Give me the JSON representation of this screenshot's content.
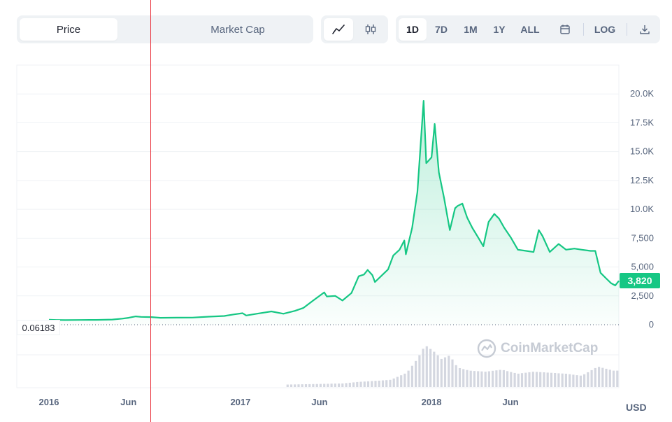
{
  "toolbar": {
    "tabs": [
      {
        "label": "Price",
        "active": true
      },
      {
        "label": "Market Cap",
        "active": false
      }
    ],
    "chart_types": [
      {
        "icon": "line-chart-icon",
        "active": true
      },
      {
        "icon": "candlestick-icon",
        "active": false
      }
    ],
    "ranges": [
      {
        "label": "1D",
        "active": true
      },
      {
        "label": "7D",
        "active": false
      },
      {
        "label": "1M",
        "active": false
      },
      {
        "label": "1Y",
        "active": false
      },
      {
        "label": "ALL",
        "active": false
      }
    ],
    "calendar_icon": "calendar-icon",
    "log_label": "LOG",
    "download_icon": "download-icon"
  },
  "min_label": "0.06183",
  "current_price_label": "3,820",
  "currency_label": "USD",
  "watermark": "CoinMarketCap",
  "colors": {
    "line": "#16c784",
    "volume": "#d4d7e0",
    "cursor": "#ea3943",
    "grid": "#eff2f5"
  },
  "chart_data": {
    "type": "area",
    "title": "",
    "xlabel": "",
    "ylabel": "",
    "currency": "USD",
    "ylim": [
      0,
      22500
    ],
    "y_ticks": [
      "0",
      "2,500",
      "5,000",
      "7,500",
      "10.0K",
      "12.5K",
      "15.0K",
      "17.5K",
      "20.0K"
    ],
    "y_tick_values": [
      0,
      2500,
      5000,
      7500,
      10000,
      12500,
      15000,
      17500,
      20000
    ],
    "x_ticks": [
      {
        "label": "2016",
        "date": "2016-01-01"
      },
      {
        "label": "Jun",
        "date": "2016-06-01"
      },
      {
        "label": "2017",
        "date": "2017-01-01"
      },
      {
        "label": "Jun",
        "date": "2017-06-01"
      },
      {
        "label": "2018",
        "date": "2018-01-01"
      },
      {
        "label": "Jun",
        "date": "2018-06-01"
      }
    ],
    "grid": true,
    "legend": "none",
    "series": [
      {
        "points": [
          [
            "2016-01-01",
            430
          ],
          [
            "2016-01-15",
            410
          ],
          [
            "2016-02-01",
            400
          ],
          [
            "2016-03-01",
            415
          ],
          [
            "2016-04-01",
            420
          ],
          [
            "2016-05-01",
            450
          ],
          [
            "2016-05-20",
            530
          ],
          [
            "2016-06-01",
            600
          ],
          [
            "2016-06-15",
            720
          ],
          [
            "2016-06-25",
            680
          ],
          [
            "2016-07-15",
            660
          ],
          [
            "2016-08-01",
            600
          ],
          [
            "2016-09-01",
            610
          ],
          [
            "2016-10-01",
            620
          ],
          [
            "2016-11-01",
            700
          ],
          [
            "2016-12-01",
            760
          ],
          [
            "2016-12-20",
            900
          ],
          [
            "2017-01-05",
            1000
          ],
          [
            "2017-01-12",
            800
          ],
          [
            "2017-02-01",
            950
          ],
          [
            "2017-03-01",
            1150
          ],
          [
            "2017-03-24",
            950
          ],
          [
            "2017-04-15",
            1200
          ],
          [
            "2017-05-01",
            1450
          ],
          [
            "2017-05-20",
            2100
          ],
          [
            "2017-06-10",
            2800
          ],
          [
            "2017-06-15",
            2450
          ],
          [
            "2017-07-01",
            2500
          ],
          [
            "2017-07-15",
            2100
          ],
          [
            "2017-08-01",
            2750
          ],
          [
            "2017-08-15",
            4200
          ],
          [
            "2017-08-25",
            4350
          ],
          [
            "2017-09-01",
            4750
          ],
          [
            "2017-09-10",
            4300
          ],
          [
            "2017-09-15",
            3700
          ],
          [
            "2017-10-01",
            4400
          ],
          [
            "2017-10-10",
            4800
          ],
          [
            "2017-10-20",
            6000
          ],
          [
            "2017-11-01",
            6500
          ],
          [
            "2017-11-10",
            7300
          ],
          [
            "2017-11-13",
            6100
          ],
          [
            "2017-11-25",
            8400
          ],
          [
            "2017-12-05",
            11500
          ],
          [
            "2017-12-17",
            19400
          ],
          [
            "2017-12-22",
            14000
          ],
          [
            "2018-01-01",
            14500
          ],
          [
            "2018-01-07",
            17400
          ],
          [
            "2018-01-15",
            13200
          ],
          [
            "2018-01-25",
            11000
          ],
          [
            "2018-02-01",
            9200
          ],
          [
            "2018-02-05",
            8200
          ],
          [
            "2018-02-15",
            10100
          ],
          [
            "2018-02-20",
            10300
          ],
          [
            "2018-03-01",
            10500
          ],
          [
            "2018-03-10",
            9300
          ],
          [
            "2018-03-20",
            8400
          ],
          [
            "2018-04-01",
            7500
          ],
          [
            "2018-04-10",
            6800
          ],
          [
            "2018-04-20",
            8900
          ],
          [
            "2018-05-01",
            9600
          ],
          [
            "2018-05-10",
            9200
          ],
          [
            "2018-05-20",
            8400
          ],
          [
            "2018-06-01",
            7600
          ],
          [
            "2018-06-15",
            6500
          ],
          [
            "2018-07-01",
            6400
          ],
          [
            "2018-07-15",
            6300
          ],
          [
            "2018-07-25",
            8200
          ],
          [
            "2018-08-01",
            7700
          ],
          [
            "2018-08-15",
            6300
          ],
          [
            "2018-09-01",
            7000
          ],
          [
            "2018-09-15",
            6500
          ],
          [
            "2018-10-01",
            6600
          ],
          [
            "2018-10-15",
            6500
          ],
          [
            "2018-11-01",
            6400
          ],
          [
            "2018-11-10",
            6400
          ],
          [
            "2018-11-20",
            4500
          ],
          [
            "2018-12-01",
            4000
          ],
          [
            "2018-12-10",
            3600
          ],
          [
            "2018-12-18",
            3400
          ],
          [
            "2018-12-25",
            3800
          ]
        ]
      }
    ],
    "volume": {
      "points": [
        [
          "2016-01-01",
          0.02
        ],
        [
          "2016-06-01",
          0.03
        ],
        [
          "2017-01-01",
          0.03
        ],
        [
          "2017-06-01",
          0.06
        ],
        [
          "2017-07-15",
          0.07
        ],
        [
          "2017-08-15",
          0.1
        ],
        [
          "2017-09-15",
          0.12
        ],
        [
          "2017-10-15",
          0.14
        ],
        [
          "2017-11-15",
          0.28
        ],
        [
          "2017-12-05",
          0.55
        ],
        [
          "2017-12-20",
          0.82
        ],
        [
          "2018-01-05",
          0.7
        ],
        [
          "2018-01-20",
          0.55
        ],
        [
          "2018-02-05",
          0.62
        ],
        [
          "2018-02-20",
          0.38
        ],
        [
          "2018-03-15",
          0.32
        ],
        [
          "2018-04-15",
          0.3
        ],
        [
          "2018-05-15",
          0.34
        ],
        [
          "2018-06-15",
          0.26
        ],
        [
          "2018-07-15",
          0.3
        ],
        [
          "2018-08-15",
          0.28
        ],
        [
          "2018-09-15",
          0.26
        ],
        [
          "2018-10-15",
          0.22
        ],
        [
          "2018-11-15",
          0.4
        ],
        [
          "2018-12-15",
          0.32
        ]
      ],
      "scale": "relative"
    }
  }
}
